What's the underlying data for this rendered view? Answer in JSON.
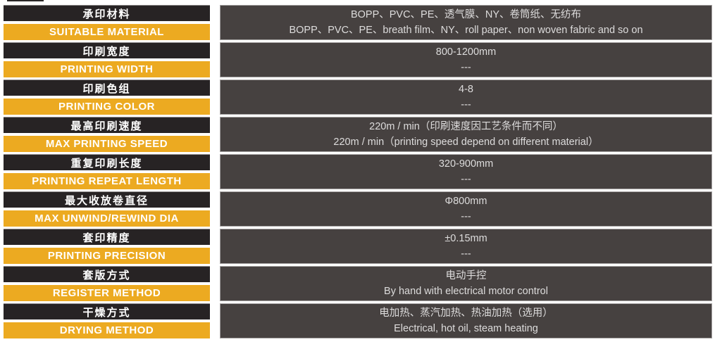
{
  "colors": {
    "label_bar_dark": "#272324",
    "label_bar_yellow": "#ecaa21",
    "value_cell_bg": "#464140",
    "label_text": "#ffffff",
    "value_text": "#dddcdc",
    "page_bg": "#ffffff"
  },
  "table": {
    "rows": [
      {
        "label_cn": "承印材料",
        "label_en": "SUITABLE MATERIAL",
        "value_cn": "BOPP、PVC、PE、透气膜、NY、卷筒纸、无纺布",
        "value_en": "BOPP、PVC、PE、breath film、NY、roll paper、non woven fabric and so on"
      },
      {
        "label_cn": "印刷宽度",
        "label_en": "PRINTING WIDTH",
        "value_cn": "800-1200mm",
        "value_en": "---"
      },
      {
        "label_cn": "印刷色组",
        "label_en": "PRINTING COLOR",
        "value_cn": "4-8",
        "value_en": "---"
      },
      {
        "label_cn": "最高印刷速度",
        "label_en": "MAX PRINTING SPEED",
        "value_cn": "220m / min（印刷速度因工艺条件而不同）",
        "value_en": "220m / min（printing speed depend on different material）"
      },
      {
        "label_cn": "重复印刷长度",
        "label_en": "PRINTING REPEAT LENGTH",
        "value_cn": "320-900mm",
        "value_en": "---"
      },
      {
        "label_cn": "最大收放卷直径",
        "label_en": "MAX UNWIND/REWIND DIA",
        "value_cn": "Φ800mm",
        "value_en": "---"
      },
      {
        "label_cn": "套印精度",
        "label_en": "PRINTING PRECISION",
        "value_cn": "±0.15mm",
        "value_en": "---"
      },
      {
        "label_cn": "套版方式",
        "label_en": "REGISTER METHOD",
        "value_cn": "电动手控",
        "value_en": "By hand with electrical motor control"
      },
      {
        "label_cn": "干燥方式",
        "label_en": "DRYING METHOD",
        "value_cn": "电加热、蒸汽加热、热油加热（选用）",
        "value_en": "Electrical, hot oil, steam heating"
      }
    ]
  }
}
